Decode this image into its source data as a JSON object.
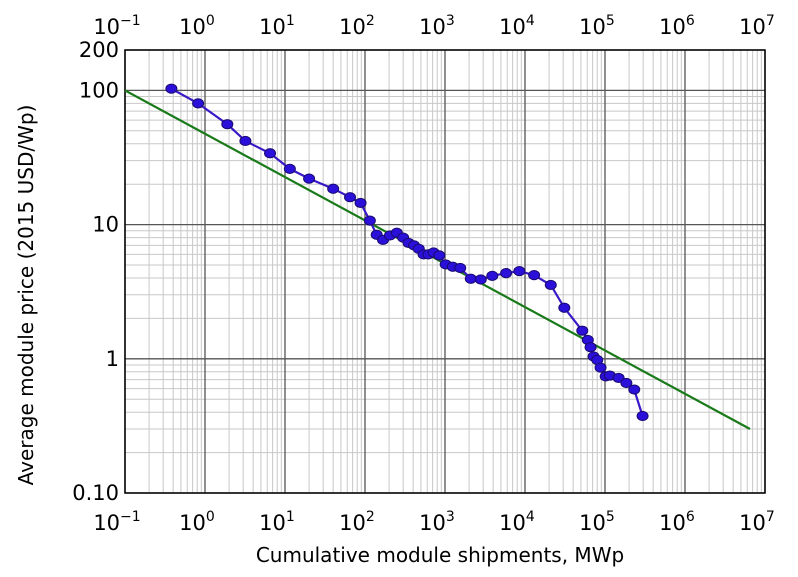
{
  "chart_data": {
    "type": "scatter",
    "title": "",
    "xlabel": "Cumulative module shipments, MWp",
    "ylabel": "Average module price (2015 USD/Wp)",
    "x_scale": "log",
    "y_scale": "log",
    "xlim": [
      0.1,
      10000000
    ],
    "ylim": [
      0.1,
      200
    ],
    "grid": true,
    "x_ticks": [
      {
        "value": 0.1,
        "base": "10",
        "exp": "−1"
      },
      {
        "value": 1,
        "base": "10",
        "exp": "0"
      },
      {
        "value": 10,
        "base": "10",
        "exp": "1"
      },
      {
        "value": 100,
        "base": "10",
        "exp": "2"
      },
      {
        "value": 1000,
        "base": "10",
        "exp": "3"
      },
      {
        "value": 10000,
        "base": "10",
        "exp": "4"
      },
      {
        "value": 100000,
        "base": "10",
        "exp": "5"
      },
      {
        "value": 1000000,
        "base": "10",
        "exp": "6"
      },
      {
        "value": 10000000,
        "base": "10",
        "exp": "7"
      }
    ],
    "y_ticks": [
      {
        "value": 0.1,
        "label": "0.10"
      },
      {
        "value": 1,
        "label": "1"
      },
      {
        "value": 10,
        "label": "10"
      },
      {
        "value": 100,
        "label": "100"
      },
      {
        "value": 200,
        "label": "200"
      }
    ],
    "series": [
      {
        "color": "#3a18c8",
        "marker_fill": "#2a10d8",
        "marker": "circle",
        "line": true,
        "points": [
          [
            0.38,
            103
          ],
          [
            0.82,
            80
          ],
          [
            1.9,
            56
          ],
          [
            3.2,
            42
          ],
          [
            6.5,
            34
          ],
          [
            11.5,
            26
          ],
          [
            20,
            22
          ],
          [
            40,
            18.5
          ],
          [
            65,
            16
          ],
          [
            88,
            14.5
          ],
          [
            115,
            10.7
          ],
          [
            140,
            8.4
          ],
          [
            168,
            7.7
          ],
          [
            205,
            8.3
          ],
          [
            250,
            8.7
          ],
          [
            300,
            8.0
          ],
          [
            350,
            7.3
          ],
          [
            410,
            7.0
          ],
          [
            470,
            6.6
          ],
          [
            540,
            6.0
          ],
          [
            620,
            6.0
          ],
          [
            720,
            6.2
          ],
          [
            850,
            5.9
          ],
          [
            1020,
            5.05
          ],
          [
            1250,
            4.85
          ],
          [
            1550,
            4.75
          ],
          [
            2100,
            3.95
          ],
          [
            2800,
            3.9
          ],
          [
            3900,
            4.15
          ],
          [
            5800,
            4.35
          ],
          [
            8500,
            4.5
          ],
          [
            13000,
            4.2
          ],
          [
            21000,
            3.55
          ],
          [
            31000,
            2.4
          ],
          [
            52000,
            1.62
          ],
          [
            61000,
            1.38
          ],
          [
            66000,
            1.22
          ],
          [
            72000,
            1.04
          ],
          [
            80000,
            0.98
          ],
          [
            88000,
            0.86
          ],
          [
            102000,
            0.74
          ],
          [
            115000,
            0.75
          ],
          [
            148000,
            0.72
          ],
          [
            185000,
            0.66
          ],
          [
            232000,
            0.59
          ],
          [
            295000,
            0.375
          ]
        ]
      },
      {
        "color": "#1a7a1a",
        "line": true,
        "marker": "none",
        "points": [
          [
            0.1,
            100
          ],
          [
            6500000,
            0.3
          ]
        ]
      }
    ]
  }
}
